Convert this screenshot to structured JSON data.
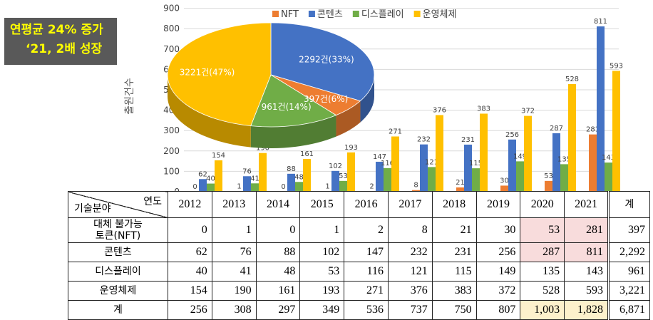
{
  "badge": {
    "line1": "연평균 24% 증가",
    "line2": "‘21, 2배 성장"
  },
  "colors": {
    "NFT": "#ed7d31",
    "콘텐츠": "#4472c4",
    "디스플레이": "#70ad47",
    "운영체제": "#ffc000"
  },
  "chart_data": [
    {
      "type": "bar",
      "ylabel": "출원건수",
      "ylim": [
        0,
        900
      ],
      "yticks": [
        "0",
        "100",
        "200",
        "300",
        "400",
        "500",
        "600",
        "700",
        "800",
        "900"
      ],
      "categories": [
        "2012",
        "2013",
        "2014",
        "2015",
        "2016",
        "2017",
        "2018",
        "2019",
        "2020",
        "2021"
      ],
      "legend": "top-right",
      "series": [
        {
          "name": "NFT",
          "values": [
            0,
            1,
            0,
            1,
            2,
            8,
            21,
            30,
            53,
            281
          ]
        },
        {
          "name": "콘텐츠",
          "values": [
            62,
            76,
            88,
            102,
            147,
            232,
            231,
            256,
            287,
            811
          ]
        },
        {
          "name": "디스플레이",
          "values": [
            40,
            41,
            48,
            53,
            116,
            121,
            115,
            149,
            135,
            143
          ]
        },
        {
          "name": "운영체제",
          "values": [
            154,
            190,
            161,
            193,
            271,
            376,
            383,
            372,
            528,
            593
          ]
        }
      ]
    },
    {
      "type": "pie",
      "slices": [
        {
          "name": "콘텐츠",
          "value": 2292,
          "label": "2292건(33%)"
        },
        {
          "name": "NFT",
          "value": 397,
          "label": "397건(6%)"
        },
        {
          "name": "디스플레이",
          "value": 961,
          "label": "961건(14%)"
        },
        {
          "name": "운영체제",
          "value": 3221,
          "label": "3221건(47%)"
        }
      ]
    },
    {
      "type": "table",
      "corner_top": "연도",
      "corner_bottom": "기술분야",
      "years": [
        "2012",
        "2013",
        "2014",
        "2015",
        "2016",
        "2017",
        "2018",
        "2019",
        "2020",
        "2021"
      ],
      "total_label": "계",
      "rows": [
        {
          "label1": "대체 불가능",
          "label2": "토큰(NFT)",
          "values": [
            "0",
            "1",
            "0",
            "1",
            "2",
            "8",
            "21",
            "30",
            "53",
            "281"
          ],
          "total": "397"
        },
        {
          "label1": "콘텐츠",
          "values": [
            "62",
            "76",
            "88",
            "102",
            "147",
            "232",
            "231",
            "256",
            "287",
            "811"
          ],
          "total": "2,292"
        },
        {
          "label1": "디스플레이",
          "values": [
            "40",
            "41",
            "48",
            "53",
            "116",
            "121",
            "115",
            "149",
            "135",
            "143"
          ],
          "total": "961"
        },
        {
          "label1": "운영체제",
          "values": [
            "154",
            "190",
            "161",
            "193",
            "271",
            "376",
            "383",
            "372",
            "528",
            "593"
          ],
          "total": "3,221"
        },
        {
          "label1": "계",
          "values": [
            "256",
            "308",
            "297",
            "349",
            "536",
            "737",
            "750",
            "807",
            "1,003",
            "1,828"
          ],
          "total": "6,871"
        }
      ]
    }
  ]
}
